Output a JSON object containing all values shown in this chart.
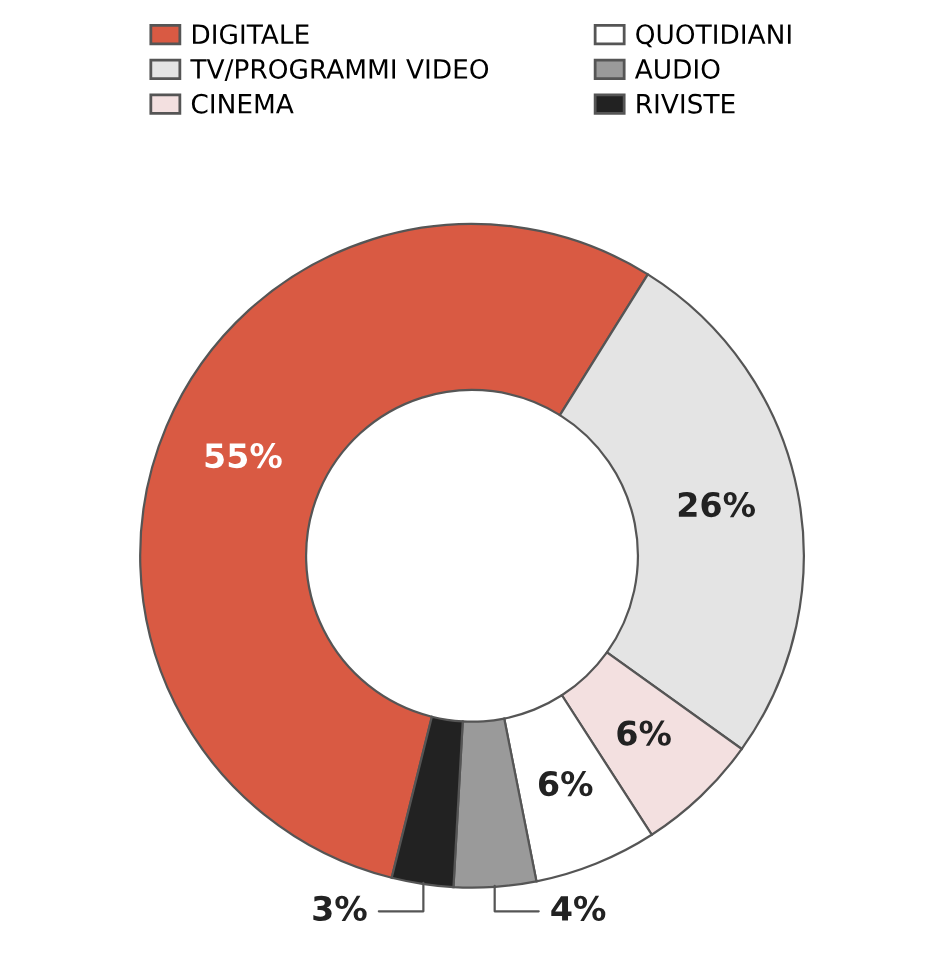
{
  "chart_data": {
    "type": "donut",
    "categories": [
      "DIGITALE",
      "TV/PROGRAMMI VIDEO",
      "CINEMA",
      "QUOTIDIANI",
      "AUDIO",
      "RIVISTE"
    ],
    "values": [
      55,
      26,
      6,
      6,
      4,
      3
    ],
    "colors": [
      "#d95a43",
      "#e4e4e4",
      "#f3e0e0",
      "#ffffff",
      "#9a9a9a",
      "#222222"
    ],
    "value_labels": [
      "55%",
      "26%",
      "6%",
      "6%",
      "4%",
      "3%"
    ],
    "legend": "top"
  }
}
